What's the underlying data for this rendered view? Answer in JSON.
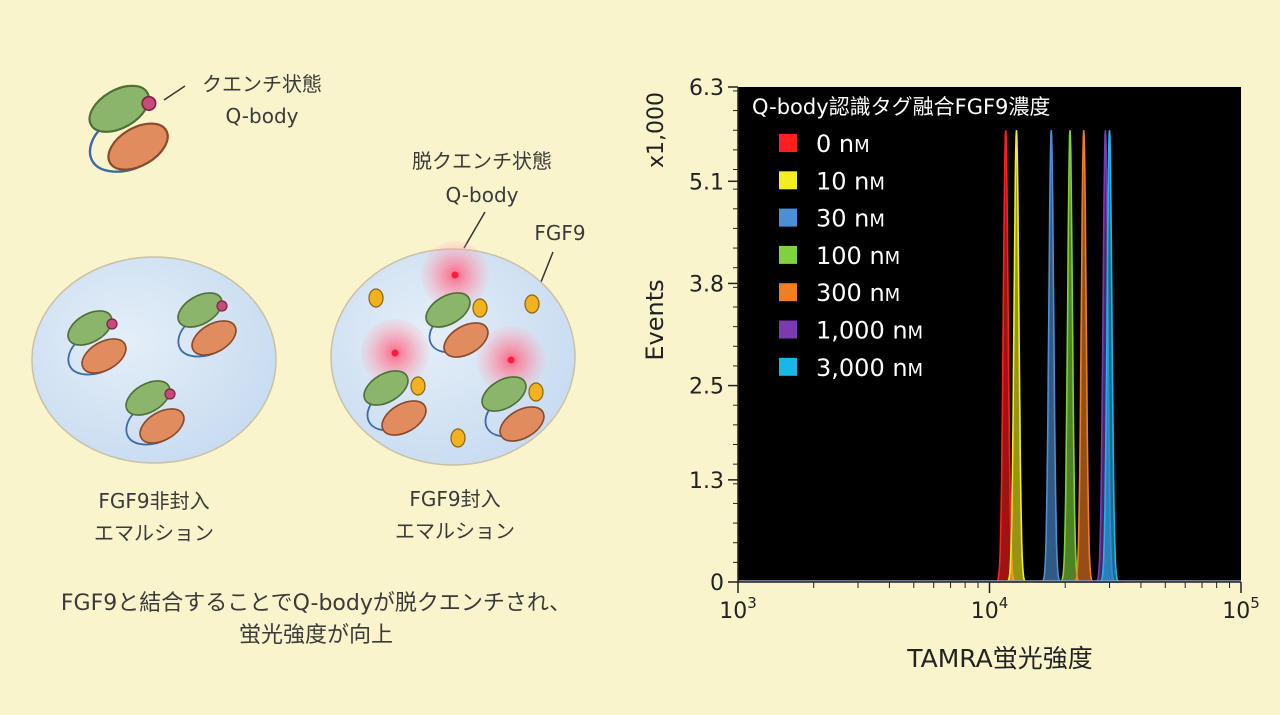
{
  "diagram": {
    "quenched_label": [
      "クエンチ状態",
      "Q-body"
    ],
    "dequenched_label": [
      "脱クエンチ状態",
      "Q-body"
    ],
    "fgf9_label": "FGF9",
    "emulsion_without": [
      "FGF9非封入",
      "エマルション"
    ],
    "emulsion_with": [
      "FGF9封入",
      "エマルション"
    ],
    "caption": [
      "FGF9と結合することでQ-bodyが脱クエンチされ、",
      "蛍光強度が向上"
    ]
  },
  "colors": {
    "background": "#faf4cc",
    "plot_background": "#000000",
    "green_domain": "#8ab56a",
    "orange_domain": "#e08c5e",
    "fgf9": "#f2b21f",
    "dye": "#c74a78",
    "emulsion_fill": "#cfe0f2"
  },
  "chart_data": {
    "type": "area",
    "title": "Q-body認識タグ融合FGF9濃度",
    "xlabel": "TAMRA蛍光強度",
    "ylabel": "Events",
    "y_multiplier_label": "x1,000",
    "xscale": "log",
    "xlim": [
      1000,
      100000
    ],
    "ylim": [
      0,
      6.3
    ],
    "x_tick_labels": [
      {
        "base": "10",
        "exp": "3",
        "value": 1000
      },
      {
        "base": "10",
        "exp": "4",
        "value": 10000
      },
      {
        "base": "10",
        "exp": "5",
        "value": 100000
      }
    ],
    "y_ticks": [
      {
        "label": "0",
        "value": 0
      },
      {
        "label": "1.3",
        "value": 1.3
      },
      {
        "label": "2.5",
        "value": 2.5
      },
      {
        "label": "3.8",
        "value": 3.8
      },
      {
        "label": "5.1",
        "value": 5.1
      },
      {
        "label": "6.3",
        "value": 6.3
      }
    ],
    "legend_position": "top-left",
    "series": [
      {
        "name": "0 nM",
        "unit_prefix": "0 n",
        "unit_suffix": "M",
        "color": "#ff1f1f",
        "peak_x": 11600,
        "peak_height": 5.75
      },
      {
        "name": "10 nM",
        "unit_prefix": "10 n",
        "unit_suffix": "M",
        "color": "#f2ee22",
        "peak_x": 12800,
        "peak_height": 5.75
      },
      {
        "name": "30 nM",
        "unit_prefix": "30 n",
        "unit_suffix": "M",
        "color": "#4d8fd6",
        "peak_x": 17600,
        "peak_height": 5.75
      },
      {
        "name": "100 nM",
        "unit_prefix": "100 n",
        "unit_suffix": "M",
        "color": "#7ed23c",
        "peak_x": 20900,
        "peak_height": 5.75
      },
      {
        "name": "300 nM",
        "unit_prefix": "300 n",
        "unit_suffix": "M",
        "color": "#f07f22",
        "peak_x": 23700,
        "peak_height": 5.75
      },
      {
        "name": "1,000 nM",
        "unit_prefix": "1,000 n",
        "unit_suffix": "M",
        "color": "#7a3ab0",
        "peak_x": 28900,
        "peak_height": 5.75
      },
      {
        "name": "3,000 nM",
        "unit_prefix": "3,000 n",
        "unit_suffix": "M",
        "color": "#18b7e8",
        "peak_x": 30000,
        "peak_height": 5.75
      }
    ]
  }
}
